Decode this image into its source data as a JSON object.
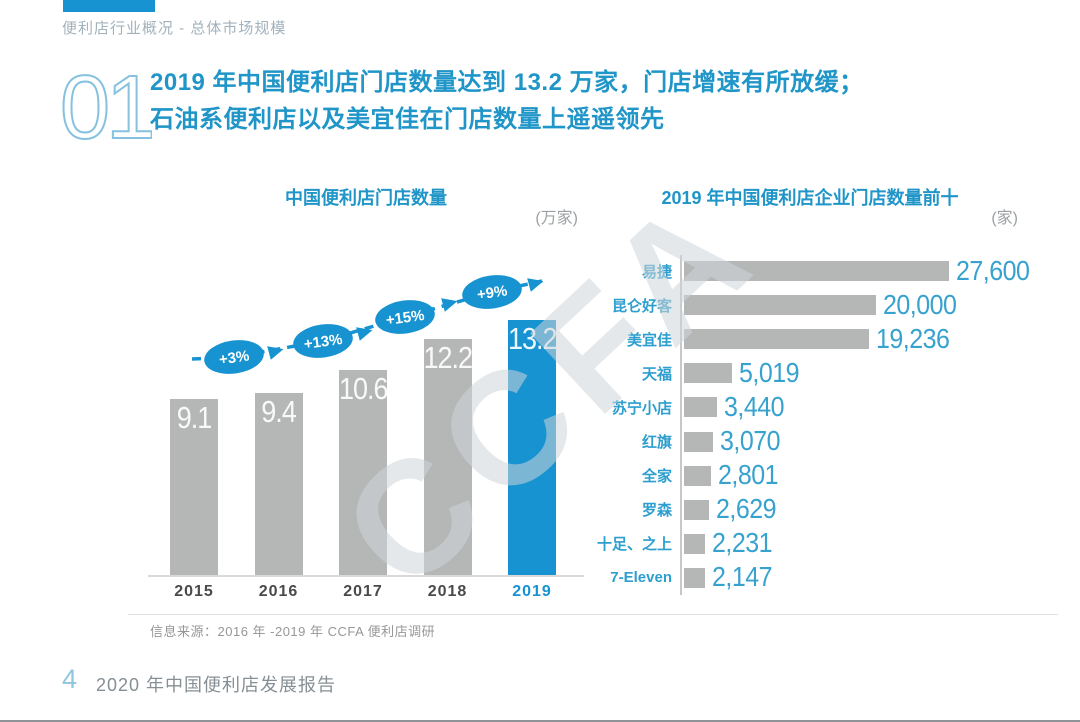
{
  "page": {
    "breadcrumb": "便利店行业概况 - 总体市场规模",
    "section_number": "01",
    "title_line1": "2019 年中国便利店门店数量达到 13.2 万家，门店增速有所放缓；",
    "title_line2": "石油系便利店以及美宜佳在门店数量上遥遥领先",
    "watermark": "CCFA",
    "source": "信息来源：2016 年 -2019 年 CCFA 便利店调研",
    "footer": {
      "page_number": "4",
      "report_title": "2020 年中国便利店发展报告"
    }
  },
  "colors": {
    "accent": "#1793d1",
    "heading_blue": "#2095c8",
    "label_blue": "#2e9ecf",
    "value_blue": "#38a2cf",
    "bar_gray": "#b5b6b6",
    "year_gray": "#4a4a4a",
    "watermark_gray": "#dfe3e5"
  },
  "chart_data": [
    {
      "type": "bar",
      "title": "中国便利店门店数量",
      "unit": "(万家)",
      "categories": [
        "2015",
        "2016",
        "2017",
        "2018",
        "2019"
      ],
      "values": [
        9.1,
        9.4,
        10.6,
        12.2,
        13.2
      ],
      "value_labels": [
        "9.1",
        "9.4",
        "10.6",
        "12.2",
        "13.2"
      ],
      "growth_labels": [
        "+3%",
        "+13%",
        "+15%",
        "+9%"
      ],
      "highlight_category": "2019",
      "ylim": [
        0,
        14
      ],
      "grid": false,
      "legend": "none"
    },
    {
      "type": "bar",
      "orientation": "horizontal",
      "title": "2019 年中国便利店企业门店数量前十",
      "unit": "(家)",
      "categories": [
        "易捷",
        "昆仑好客",
        "美宜佳",
        "天福",
        "苏宁小店",
        "红旗",
        "全家",
        "罗森",
        "十足、之上",
        "7-Eleven"
      ],
      "values": [
        27600,
        20000,
        19236,
        5019,
        3440,
        3070,
        2801,
        2629,
        2231,
        2147
      ],
      "value_labels": [
        "27,600",
        "20,000",
        "19,236",
        "5,019",
        "3,440",
        "3,070",
        "2,801",
        "2,629",
        "2,231",
        "2,147"
      ],
      "xlim": [
        0,
        28000
      ],
      "grid": false,
      "legend": "none"
    }
  ]
}
